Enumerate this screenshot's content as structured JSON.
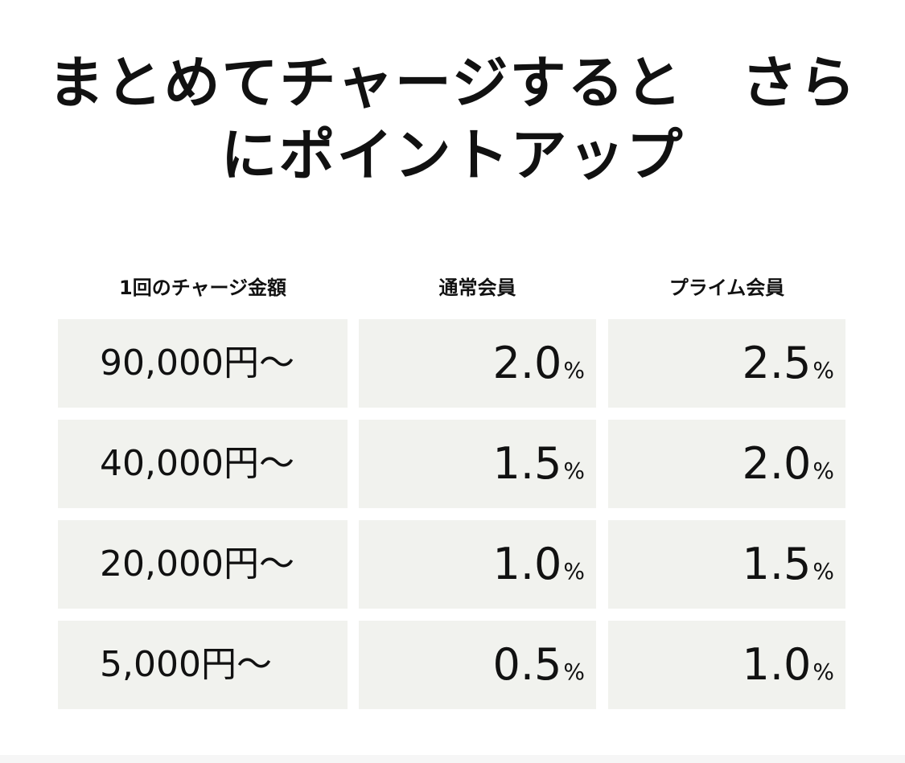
{
  "title": {
    "line1": "まとめてチャージすると　さら",
    "line2": "にポイントアップ"
  },
  "table": {
    "headers": [
      "1回のチャージ金額",
      "通常会員",
      "プライム会員"
    ],
    "percent_sign": "%",
    "rows": [
      {
        "amount": "90,000円～",
        "regular": "2.0",
        "prime": "2.5"
      },
      {
        "amount": "40,000円～",
        "regular": "1.5",
        "prime": "2.0"
      },
      {
        "amount": "20,000円～",
        "regular": "1.0",
        "prime": "1.5"
      },
      {
        "amount": "5,000円～",
        "regular": "0.5",
        "prime": "1.0"
      }
    ]
  },
  "colors": {
    "cell_background": "#f1f2ee",
    "text": "#111111"
  }
}
